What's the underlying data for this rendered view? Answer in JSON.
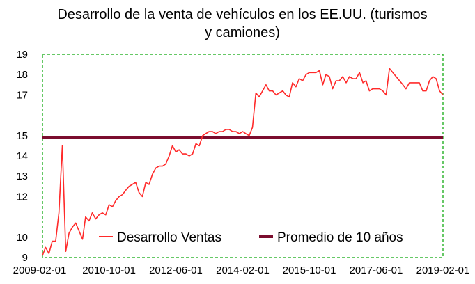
{
  "chart_data": {
    "type": "line",
    "title_lines": [
      "Desarrollo de la venta de vehículos en los EE.UU. (turismos",
      "y camiones)"
    ],
    "xlabel": "",
    "ylabel": "",
    "ylim": [
      9,
      19
    ],
    "y_ticks": [
      "9",
      "10",
      "12",
      "13",
      "14",
      "15",
      "17",
      "18",
      "19"
    ],
    "x_ticks": [
      "2009-02-01",
      "2010-10-01",
      "2012-06-01",
      "2014-02-01",
      "2015-10-01",
      "2017-06-01",
      "2019-02-01"
    ],
    "grid": false,
    "legend_position": "bottom-inside",
    "series": [
      {
        "name": "Desarrollo Ventas",
        "color": "#ff2a2a",
        "x": [
          "2009-02-01",
          "2009-03-01",
          "2009-04-01",
          "2009-05-01",
          "2009-06-01",
          "2009-07-01",
          "2009-08-01",
          "2009-09-01",
          "2009-10-01",
          "2009-11-01",
          "2009-12-01",
          "2010-01-01",
          "2010-02-01",
          "2010-03-01",
          "2010-04-01",
          "2010-05-01",
          "2010-06-01",
          "2010-07-01",
          "2010-08-01",
          "2010-09-01",
          "2010-10-01",
          "2010-11-01",
          "2010-12-01",
          "2011-01-01",
          "2011-02-01",
          "2011-03-01",
          "2011-04-01",
          "2011-05-01",
          "2011-06-01",
          "2011-07-01",
          "2011-08-01",
          "2011-09-01",
          "2011-10-01",
          "2011-11-01",
          "2011-12-01",
          "2012-01-01",
          "2012-02-01",
          "2012-03-01",
          "2012-04-01",
          "2012-05-01",
          "2012-06-01",
          "2012-07-01",
          "2012-08-01",
          "2012-09-01",
          "2012-10-01",
          "2012-11-01",
          "2012-12-01",
          "2013-01-01",
          "2013-02-01",
          "2013-03-01",
          "2013-04-01",
          "2013-05-01",
          "2013-06-01",
          "2013-07-01",
          "2013-08-01",
          "2013-09-01",
          "2013-10-01",
          "2013-11-01",
          "2013-12-01",
          "2014-01-01",
          "2014-02-01",
          "2014-03-01",
          "2014-04-01",
          "2014-05-01",
          "2014-06-01",
          "2014-07-01",
          "2014-08-01",
          "2014-09-01",
          "2014-10-01",
          "2014-11-01",
          "2014-12-01",
          "2015-01-01",
          "2015-02-01",
          "2015-03-01",
          "2015-04-01",
          "2015-05-01",
          "2015-06-01",
          "2015-07-01",
          "2015-08-01",
          "2015-09-01",
          "2015-10-01",
          "2015-11-01",
          "2015-12-01",
          "2016-01-01",
          "2016-02-01",
          "2016-03-01",
          "2016-04-01",
          "2016-05-01",
          "2016-06-01",
          "2016-07-01",
          "2016-08-01",
          "2016-09-01",
          "2016-10-01",
          "2016-11-01",
          "2016-12-01",
          "2017-01-01",
          "2017-02-01",
          "2017-03-01",
          "2017-04-01",
          "2017-05-01",
          "2017-06-01",
          "2017-07-01",
          "2017-08-01",
          "2017-09-01",
          "2017-10-01",
          "2017-11-01",
          "2017-12-01",
          "2018-01-01",
          "2018-02-01",
          "2018-03-01",
          "2018-04-01",
          "2018-05-01",
          "2018-06-01",
          "2018-07-01",
          "2018-08-01",
          "2018-09-01",
          "2018-10-01",
          "2018-11-01",
          "2018-12-01",
          "2019-01-01",
          "2019-02-01"
        ],
        "y": [
          9.1,
          9.5,
          9.2,
          9.8,
          9.8,
          11.2,
          14.5,
          9.3,
          10.2,
          10.5,
          10.7,
          10.3,
          9.9,
          11.0,
          10.8,
          11.2,
          10.9,
          11.1,
          11.2,
          11.1,
          11.6,
          11.5,
          11.8,
          12.0,
          12.1,
          12.3,
          12.5,
          12.6,
          12.7,
          12.2,
          12.0,
          12.7,
          12.6,
          13.1,
          13.4,
          13.5,
          13.5,
          13.6,
          14.0,
          14.5,
          14.2,
          14.3,
          14.1,
          14.1,
          14.0,
          14.1,
          14.6,
          14.5,
          15.0,
          15.1,
          15.2,
          15.2,
          15.1,
          15.2,
          15.2,
          15.3,
          15.3,
          15.2,
          15.2,
          15.1,
          15.2,
          15.1,
          15.0,
          15.4,
          17.1,
          16.9,
          17.2,
          17.5,
          17.2,
          17.2,
          17.0,
          17.1,
          17.2,
          17.0,
          16.9,
          17.6,
          17.4,
          17.8,
          17.7,
          18.0,
          18.1,
          18.1,
          18.1,
          18.2,
          17.5,
          18.0,
          17.9,
          17.3,
          17.7,
          17.7,
          17.9,
          17.6,
          17.9,
          17.8,
          17.8,
          18.1,
          17.6,
          17.7,
          17.2,
          17.3,
          17.3,
          17.3,
          17.2,
          17.0,
          18.3,
          18.1,
          17.9,
          17.7,
          17.5,
          17.3,
          17.6,
          17.6,
          17.6,
          17.6,
          17.2,
          17.2,
          17.7,
          17.9,
          17.8,
          17.2,
          17.0
        ]
      },
      {
        "name": "Promedio de 10 años",
        "color": "#7b0d2e",
        "x": [
          "2009-02-01",
          "2019-02-01"
        ],
        "y": [
          14.9,
          14.9
        ]
      }
    ]
  }
}
